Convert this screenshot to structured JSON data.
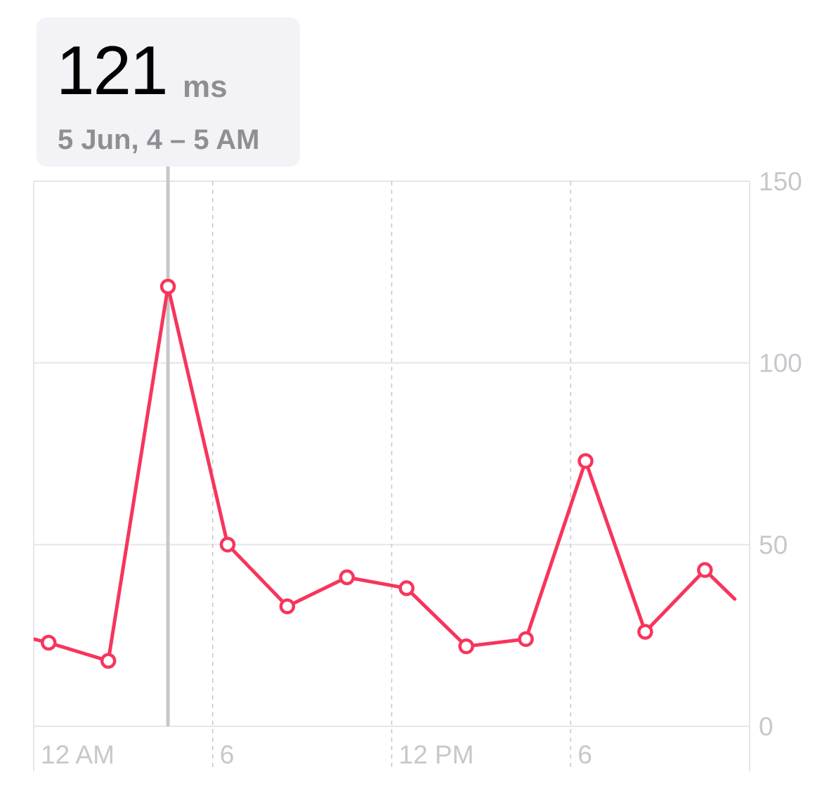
{
  "tooltip": {
    "value": "121",
    "unit": "ms",
    "date": "5 Jun, 4 – 5 AM"
  },
  "colors": {
    "line": "#f7355c",
    "grid": "#e5e5ea",
    "axis_text": "#c7c7cc",
    "tooltip_bg": "#f2f2f7",
    "selection_rule": "#c7c7cc"
  },
  "chart_data": {
    "type": "line",
    "x_tick_labels": [
      "12 AM",
      "6",
      "12 PM",
      "6"
    ],
    "x_tick_hours": [
      0,
      6,
      12,
      18
    ],
    "y_ticks": [
      0,
      50,
      100,
      150
    ],
    "ylim": [
      0,
      150
    ],
    "xlim": [
      0,
      24
    ],
    "grid": true,
    "y_axis_side": "right",
    "selected_hour": 4.5,
    "selected_value": 121,
    "series": [
      {
        "points": [
          {
            "x": -0.5,
            "y": 25
          },
          {
            "x": 0.5,
            "y": 23
          },
          {
            "x": 2.5,
            "y": 18
          },
          {
            "x": 4.5,
            "y": 121
          },
          {
            "x": 6.5,
            "y": 50
          },
          {
            "x": 8.5,
            "y": 33
          },
          {
            "x": 10.5,
            "y": 41
          },
          {
            "x": 12.5,
            "y": 38
          },
          {
            "x": 14.5,
            "y": 22
          },
          {
            "x": 16.5,
            "y": 24
          },
          {
            "x": 18.5,
            "y": 73
          },
          {
            "x": 20.5,
            "y": 26
          },
          {
            "x": 22.5,
            "y": 43
          },
          {
            "x": 23.5,
            "y": 35
          }
        ],
        "marker_from_index": 1,
        "marker_to_index": 12
      }
    ]
  }
}
